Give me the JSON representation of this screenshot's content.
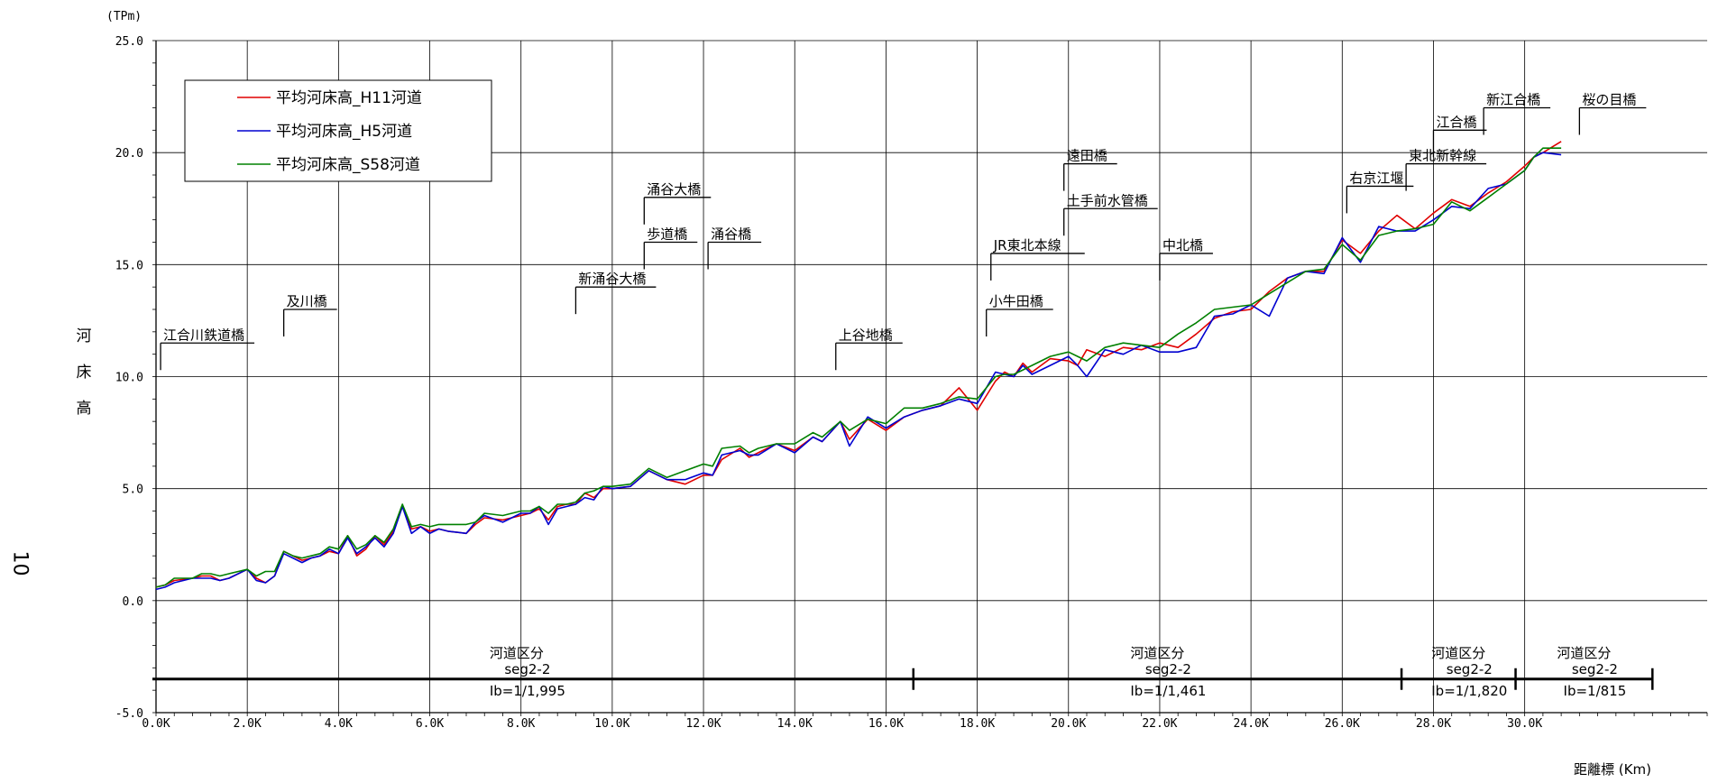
{
  "page_number": "10",
  "chart_data": {
    "type": "line",
    "ylabel": "河床高",
    "yunit": "(TPm)",
    "xlabel": "距離標 (Km)",
    "xlim": [
      0,
      34
    ],
    "ylim": [
      -5,
      25
    ],
    "xticks": [
      "0.0K",
      "2.0K",
      "4.0K",
      "6.0K",
      "8.0K",
      "10.0K",
      "12.0K",
      "14.0K",
      "16.0K",
      "18.0K",
      "20.0K",
      "22.0K",
      "24.0K",
      "26.0K",
      "28.0K",
      "30.0K"
    ],
    "yticks": [
      "-5.0",
      "0.0",
      "5.0",
      "10.0",
      "15.0",
      "20.0",
      "25.0"
    ],
    "grid": true,
    "legend_position": "top-left",
    "series": [
      {
        "name": "平均河床高_H11河道",
        "color": "#e00000",
        "x": [
          0.0,
          0.2,
          0.4,
          0.8,
          1.0,
          1.2,
          1.4,
          1.6,
          2.0,
          2.2,
          2.4,
          2.6,
          2.8,
          3.0,
          3.2,
          3.4,
          3.6,
          3.8,
          4.0,
          4.2,
          4.4,
          4.6,
          4.8,
          5.0,
          5.2,
          5.4,
          5.6,
          5.8,
          6.0,
          6.2,
          6.4,
          6.8,
          7.0,
          7.2,
          7.6,
          8.0,
          8.2,
          8.4,
          8.6,
          8.8,
          9.0,
          9.2,
          9.4,
          9.6,
          9.8,
          10.0,
          10.4,
          10.8,
          11.2,
          11.6,
          12.0,
          12.2,
          12.4,
          12.8,
          13.0,
          13.2,
          13.6,
          14.0,
          14.4,
          14.6,
          15.0,
          15.2,
          15.6,
          16.0,
          16.4,
          16.8,
          17.2,
          17.6,
          18.0,
          18.4,
          18.6,
          18.8,
          19.0,
          19.2,
          19.6,
          20.0,
          20.2,
          20.4,
          20.8,
          21.2,
          21.6,
          22.0,
          22.4,
          22.8,
          23.2,
          23.6,
          24.0,
          24.4,
          24.8,
          25.2,
          25.6,
          26.0,
          26.4,
          26.8,
          27.2,
          27.6,
          28.0,
          28.4,
          28.8,
          29.2,
          29.6,
          30.0,
          30.2,
          30.4,
          30.8
        ],
        "values": [
          0.6,
          0.7,
          0.9,
          1.0,
          1.1,
          1.1,
          0.9,
          1.0,
          1.4,
          1.0,
          0.8,
          1.1,
          2.2,
          2.0,
          1.8,
          1.9,
          2.0,
          2.2,
          2.1,
          2.9,
          2.0,
          2.3,
          2.9,
          2.5,
          3.1,
          4.2,
          3.2,
          3.3,
          3.1,
          3.2,
          3.1,
          3.0,
          3.4,
          3.7,
          3.6,
          3.8,
          3.9,
          4.1,
          3.6,
          4.2,
          4.3,
          4.3,
          4.8,
          4.6,
          5.0,
          5.0,
          5.1,
          5.8,
          5.4,
          5.2,
          5.6,
          5.6,
          6.3,
          6.8,
          6.4,
          6.6,
          7.0,
          6.7,
          7.3,
          7.1,
          8.0,
          7.2,
          8.1,
          7.6,
          8.2,
          8.5,
          8.7,
          9.5,
          8.5,
          9.8,
          10.2,
          10.0,
          10.6,
          10.2,
          10.8,
          10.7,
          10.5,
          11.2,
          10.9,
          11.3,
          11.2,
          11.5,
          11.3,
          11.9,
          12.6,
          12.9,
          13.0,
          13.8,
          14.4,
          14.7,
          14.7,
          16.1,
          15.5,
          16.5,
          17.2,
          16.6,
          17.3,
          17.9,
          17.6,
          18.2,
          18.7,
          19.4,
          19.8,
          20.0,
          20.5
        ]
      },
      {
        "name": "平均河床高_H5河道",
        "color": "#0000d0",
        "x": [
          0.0,
          0.2,
          0.4,
          0.8,
          1.0,
          1.2,
          1.4,
          1.6,
          2.0,
          2.2,
          2.4,
          2.6,
          2.8,
          3.0,
          3.2,
          3.4,
          3.6,
          3.8,
          4.0,
          4.2,
          4.4,
          4.6,
          4.8,
          5.0,
          5.2,
          5.4,
          5.6,
          5.8,
          6.0,
          6.2,
          6.4,
          6.8,
          7.0,
          7.2,
          7.6,
          8.0,
          8.2,
          8.4,
          8.6,
          8.8,
          9.0,
          9.2,
          9.4,
          9.6,
          9.8,
          10.0,
          10.4,
          10.8,
          11.2,
          11.6,
          12.0,
          12.2,
          12.4,
          12.8,
          13.0,
          13.2,
          13.6,
          14.0,
          14.4,
          14.6,
          15.0,
          15.2,
          15.6,
          16.0,
          16.4,
          16.8,
          17.2,
          17.6,
          18.0,
          18.4,
          18.6,
          18.8,
          19.0,
          19.2,
          19.6,
          20.0,
          20.2,
          20.4,
          20.8,
          21.2,
          21.6,
          22.0,
          22.4,
          22.8,
          23.2,
          23.6,
          24.0,
          24.4,
          24.8,
          25.2,
          25.6,
          26.0,
          26.4,
          26.8,
          27.2,
          27.6,
          28.0,
          28.4,
          28.8,
          29.2,
          29.6,
          30.0,
          30.2,
          30.4,
          30.8
        ],
        "values": [
          0.5,
          0.6,
          0.8,
          1.0,
          1.0,
          1.0,
          0.9,
          1.0,
          1.4,
          0.9,
          0.8,
          1.1,
          2.1,
          1.9,
          1.7,
          1.9,
          2.0,
          2.3,
          2.1,
          2.8,
          2.1,
          2.4,
          2.8,
          2.4,
          3.0,
          4.2,
          3.0,
          3.3,
          3.0,
          3.2,
          3.1,
          3.0,
          3.5,
          3.8,
          3.5,
          3.9,
          3.9,
          4.2,
          3.4,
          4.1,
          4.2,
          4.3,
          4.6,
          4.5,
          5.1,
          5.0,
          5.1,
          5.8,
          5.4,
          5.4,
          5.7,
          5.6,
          6.5,
          6.7,
          6.5,
          6.5,
          7.0,
          6.6,
          7.3,
          7.1,
          8.0,
          6.9,
          8.2,
          7.7,
          8.2,
          8.5,
          8.7,
          9.0,
          8.8,
          10.2,
          10.1,
          10.0,
          10.5,
          10.1,
          10.5,
          10.9,
          10.5,
          10.0,
          11.2,
          11.0,
          11.4,
          11.1,
          11.1,
          11.3,
          12.7,
          12.8,
          13.2,
          12.7,
          14.4,
          14.7,
          14.6,
          16.2,
          15.1,
          16.7,
          16.5,
          16.5,
          17.0,
          17.6,
          17.5,
          18.4,
          18.6,
          19.2,
          19.8,
          20.0,
          19.9
        ]
      },
      {
        "name": "平均河床高_S58河道",
        "color": "#008000",
        "x": [
          0.0,
          0.2,
          0.4,
          0.8,
          1.0,
          1.2,
          1.4,
          1.6,
          2.0,
          2.2,
          2.4,
          2.6,
          2.8,
          3.0,
          3.2,
          3.4,
          3.6,
          3.8,
          4.0,
          4.2,
          4.4,
          4.6,
          4.8,
          5.0,
          5.2,
          5.4,
          5.6,
          5.8,
          6.0,
          6.2,
          6.4,
          6.8,
          7.0,
          7.2,
          7.6,
          8.0,
          8.2,
          8.4,
          8.6,
          8.8,
          9.0,
          9.2,
          9.4,
          9.6,
          9.8,
          10.0,
          10.4,
          10.8,
          11.2,
          11.6,
          12.0,
          12.2,
          12.4,
          12.8,
          13.0,
          13.2,
          13.6,
          14.0,
          14.4,
          14.6,
          15.0,
          15.2,
          15.6,
          16.0,
          16.4,
          16.8,
          17.2,
          17.6,
          18.0,
          18.4,
          18.6,
          18.8,
          19.0,
          19.2,
          19.6,
          20.0,
          20.2,
          20.4,
          20.8,
          21.2,
          21.6,
          22.0,
          22.4,
          22.8,
          23.2,
          23.6,
          24.0,
          24.4,
          24.8,
          25.2,
          25.6,
          26.0,
          26.4,
          26.8,
          27.2,
          27.6,
          28.0,
          28.4,
          28.8,
          29.2,
          29.6,
          30.0,
          30.2,
          30.4,
          30.8
        ],
        "values": [
          0.6,
          0.7,
          1.0,
          1.0,
          1.2,
          1.2,
          1.1,
          1.2,
          1.4,
          1.1,
          1.3,
          1.3,
          2.2,
          2.0,
          1.9,
          2.0,
          2.1,
          2.4,
          2.3,
          2.9,
          2.3,
          2.5,
          2.9,
          2.6,
          3.2,
          4.3,
          3.3,
          3.4,
          3.3,
          3.4,
          3.4,
          3.4,
          3.5,
          3.9,
          3.8,
          4.0,
          4.0,
          4.2,
          3.9,
          4.3,
          4.3,
          4.4,
          4.8,
          4.9,
          5.1,
          5.1,
          5.2,
          5.9,
          5.5,
          5.8,
          6.1,
          6.0,
          6.8,
          6.9,
          6.6,
          6.8,
          7.0,
          7.0,
          7.5,
          7.3,
          8.0,
          7.6,
          8.1,
          7.9,
          8.6,
          8.6,
          8.8,
          9.1,
          9.0,
          10.0,
          10.1,
          10.1,
          10.3,
          10.5,
          10.9,
          11.1,
          10.9,
          10.7,
          11.3,
          11.5,
          11.4,
          11.3,
          11.9,
          12.4,
          13.0,
          13.1,
          13.2,
          13.7,
          14.2,
          14.7,
          14.8,
          15.9,
          15.2,
          16.3,
          16.5,
          16.6,
          16.8,
          17.8,
          17.4,
          18.0,
          18.6,
          19.2,
          19.8,
          20.2,
          20.2
        ]
      }
    ],
    "annotations": [
      {
        "label": "江合川鉄道橋",
        "x": 0.1,
        "y": 11.5
      },
      {
        "label": "及川橋",
        "x": 2.8,
        "y": 13.0
      },
      {
        "label": "新涌谷大橋",
        "x": 9.2,
        "y": 14.0
      },
      {
        "label": "歩道橋",
        "x": 10.7,
        "y": 16.0
      },
      {
        "label": "涌谷大橋",
        "x": 10.7,
        "y": 18.0
      },
      {
        "label": "涌谷橋",
        "x": 12.1,
        "y": 16.0
      },
      {
        "label": "上谷地橋",
        "x": 14.9,
        "y": 11.5
      },
      {
        "label": "JR東北本線",
        "x": 18.3,
        "y": 15.5
      },
      {
        "label": "小牛田橋",
        "x": 18.2,
        "y": 13.0
      },
      {
        "label": "遠田橋",
        "x": 19.9,
        "y": 19.5
      },
      {
        "label": "土手前水管橋",
        "x": 19.9,
        "y": 17.5
      },
      {
        "label": "中北橋",
        "x": 22.0,
        "y": 15.5
      },
      {
        "label": "右京江堰",
        "x": 26.1,
        "y": 18.5
      },
      {
        "label": "東北新幹線",
        "x": 27.4,
        "y": 19.5
      },
      {
        "label": "江合橋",
        "x": 28.0,
        "y": 21.0
      },
      {
        "label": "新江合橋",
        "x": 29.1,
        "y": 22.0
      },
      {
        "label": "桜の目橋",
        "x": 31.2,
        "y": 22.0
      }
    ],
    "segments": {
      "y": -3.5,
      "boundaries": [
        0.0,
        16.6,
        27.3,
        29.8,
        32.8
      ],
      "items": [
        {
          "title": "河道区分",
          "seg": "seg2-2",
          "slope": "Ib=1/1,995"
        },
        {
          "title": "河道区分",
          "seg": "seg2-2",
          "slope": "Ib=1/1,461"
        },
        {
          "title": "河道区分",
          "seg": "seg2-2",
          "slope": "Ib=1/1,820"
        },
        {
          "title": "河道区分",
          "seg": "seg2-2",
          "slope": "Ib=1/815"
        }
      ]
    }
  }
}
